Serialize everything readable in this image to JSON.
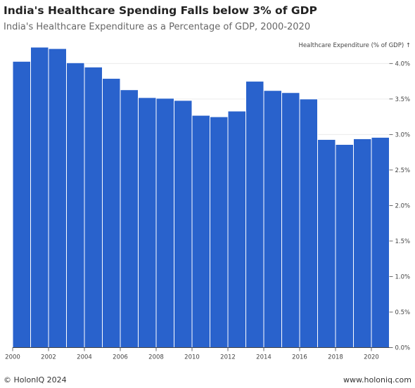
{
  "header": {
    "title": "India's Healthcare Spending Falls below 3% of GDP",
    "subtitle": "India's Healthcare Expenditure as a Percentage of GDP, 2000-2020"
  },
  "footer": {
    "left": "© HolonIQ 2024",
    "right": "www.holoniq.com"
  },
  "chart_data": {
    "type": "bar",
    "title": "India's Healthcare Spending Falls below 3% of GDP",
    "subtitle": "India's Healthcare Expenditure as a Percentage of GDP, 2000-2020",
    "xlabel": "",
    "ylabel": "Healthcare Expenditure (% of GDP) ↑",
    "bar_color": "#2962cc",
    "categories": [
      "2000",
      "2001",
      "2002",
      "2003",
      "2004",
      "2005",
      "2006",
      "2007",
      "2008",
      "2009",
      "2010",
      "2011",
      "2012",
      "2013",
      "2014",
      "2015",
      "2016",
      "2017",
      "2018",
      "2019",
      "2020"
    ],
    "values": [
      4.03,
      4.23,
      4.21,
      4.01,
      3.95,
      3.79,
      3.63,
      3.52,
      3.51,
      3.48,
      3.27,
      3.25,
      3.33,
      3.75,
      3.62,
      3.59,
      3.5,
      2.93,
      2.86,
      2.94,
      2.96
    ],
    "ylim": [
      0,
      4.3
    ],
    "yticks": [
      "0.0%",
      "0.5%",
      "1.0%",
      "1.5%",
      "2.0%",
      "2.5%",
      "3.0%",
      "3.5%",
      "4.0%"
    ],
    "ytick_values": [
      0,
      0.5,
      1.0,
      1.5,
      2.0,
      2.5,
      3.0,
      3.5,
      4.0
    ],
    "xticks": [
      "2000",
      "2002",
      "2004",
      "2006",
      "2008",
      "2010",
      "2012",
      "2014",
      "2016",
      "2018",
      "2020"
    ],
    "grid": true,
    "y_axis_position": "right"
  }
}
